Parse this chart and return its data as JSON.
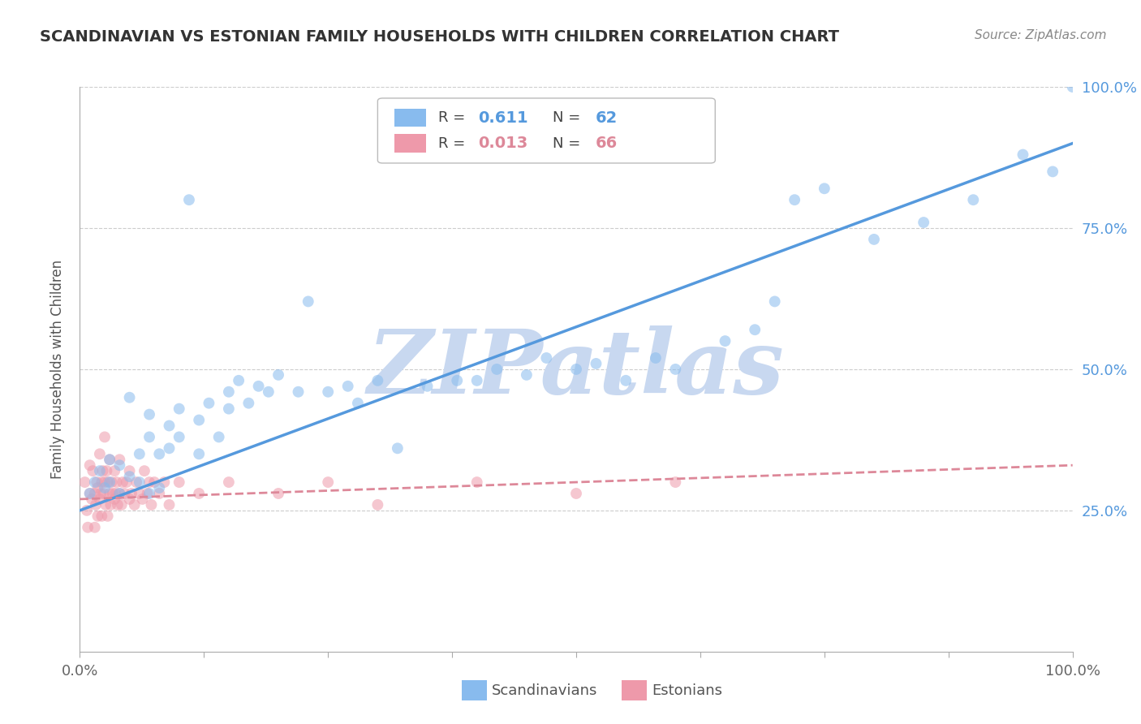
{
  "title": "SCANDINAVIAN VS ESTONIAN FAMILY HOUSEHOLDS WITH CHILDREN CORRELATION CHART",
  "source": "Source: ZipAtlas.com",
  "ylabel": "Family Households with Children",
  "watermark": "ZIPatlas",
  "watermark_color": "#c8d8f0",
  "background_color": "#ffffff",
  "grid_color": "#cccccc",
  "scandinavians_color": "#88bbee",
  "estonians_color": "#ee99aa",
  "regression_blue_color": "#5599dd",
  "regression_pink_color": "#dd8899",
  "blue_line_x0": 0.0,
  "blue_line_y0": 0.25,
  "blue_line_x1": 1.0,
  "blue_line_y1": 0.9,
  "pink_line_x0": 0.0,
  "pink_line_y0": 0.27,
  "pink_line_x1": 1.0,
  "pink_line_y1": 0.33,
  "R_blue": "0.611",
  "N_blue": "62",
  "R_pink": "0.013",
  "N_pink": "66",
  "scandinavians_x": [
    0.01,
    0.015,
    0.02,
    0.025,
    0.03,
    0.03,
    0.04,
    0.04,
    0.05,
    0.05,
    0.06,
    0.06,
    0.07,
    0.07,
    0.07,
    0.08,
    0.08,
    0.09,
    0.09,
    0.1,
    0.1,
    0.11,
    0.12,
    0.12,
    0.13,
    0.14,
    0.15,
    0.15,
    0.16,
    0.17,
    0.18,
    0.19,
    0.2,
    0.22,
    0.23,
    0.25,
    0.27,
    0.28,
    0.3,
    0.32,
    0.35,
    0.38,
    0.4,
    0.42,
    0.45,
    0.47,
    0.5,
    0.52,
    0.55,
    0.58,
    0.6,
    0.65,
    0.68,
    0.7,
    0.72,
    0.75,
    0.8,
    0.85,
    0.9,
    0.95,
    0.98,
    1.0
  ],
  "scandinavians_y": [
    0.28,
    0.3,
    0.32,
    0.29,
    0.34,
    0.3,
    0.33,
    0.28,
    0.45,
    0.31,
    0.35,
    0.3,
    0.38,
    0.28,
    0.42,
    0.35,
    0.29,
    0.4,
    0.36,
    0.43,
    0.38,
    0.8,
    0.41,
    0.35,
    0.44,
    0.38,
    0.43,
    0.46,
    0.48,
    0.44,
    0.47,
    0.46,
    0.49,
    0.46,
    0.62,
    0.46,
    0.47,
    0.44,
    0.48,
    0.36,
    0.47,
    0.48,
    0.48,
    0.5,
    0.49,
    0.52,
    0.5,
    0.51,
    0.48,
    0.52,
    0.5,
    0.55,
    0.57,
    0.62,
    0.8,
    0.82,
    0.73,
    0.76,
    0.8,
    0.88,
    0.85,
    1.0
  ],
  "estonians_x": [
    0.005,
    0.007,
    0.008,
    0.01,
    0.01,
    0.012,
    0.013,
    0.015,
    0.015,
    0.016,
    0.017,
    0.018,
    0.018,
    0.02,
    0.02,
    0.021,
    0.022,
    0.022,
    0.023,
    0.024,
    0.025,
    0.025,
    0.026,
    0.027,
    0.028,
    0.028,
    0.03,
    0.03,
    0.031,
    0.032,
    0.033,
    0.035,
    0.035,
    0.036,
    0.037,
    0.038,
    0.04,
    0.04,
    0.042,
    0.043,
    0.045,
    0.047,
    0.05,
    0.05,
    0.052,
    0.055,
    0.057,
    0.06,
    0.063,
    0.065,
    0.068,
    0.07,
    0.072,
    0.075,
    0.08,
    0.085,
    0.09,
    0.1,
    0.12,
    0.15,
    0.2,
    0.25,
    0.3,
    0.4,
    0.5,
    0.6
  ],
  "estonians_y": [
    0.3,
    0.25,
    0.22,
    0.28,
    0.33,
    0.27,
    0.32,
    0.22,
    0.28,
    0.26,
    0.3,
    0.24,
    0.29,
    0.27,
    0.35,
    0.28,
    0.3,
    0.24,
    0.32,
    0.28,
    0.3,
    0.38,
    0.26,
    0.32,
    0.3,
    0.24,
    0.28,
    0.34,
    0.26,
    0.3,
    0.28,
    0.27,
    0.32,
    0.28,
    0.3,
    0.26,
    0.28,
    0.34,
    0.26,
    0.3,
    0.28,
    0.3,
    0.27,
    0.32,
    0.28,
    0.26,
    0.3,
    0.28,
    0.27,
    0.32,
    0.28,
    0.3,
    0.26,
    0.3,
    0.28,
    0.3,
    0.26,
    0.3,
    0.28,
    0.3,
    0.28,
    0.3,
    0.26,
    0.3,
    0.28,
    0.3
  ],
  "xlim": [
    0.0,
    1.0
  ],
  "ylim": [
    0.0,
    1.0
  ],
  "yticks": [
    0.25,
    0.5,
    0.75,
    1.0
  ],
  "ytick_labels": [
    "25.0%",
    "50.0%",
    "75.0%",
    "100.0%"
  ],
  "xtick_labels_show": [
    "0.0%",
    "100.0%"
  ],
  "marker_size": 100,
  "marker_alpha": 0.55
}
